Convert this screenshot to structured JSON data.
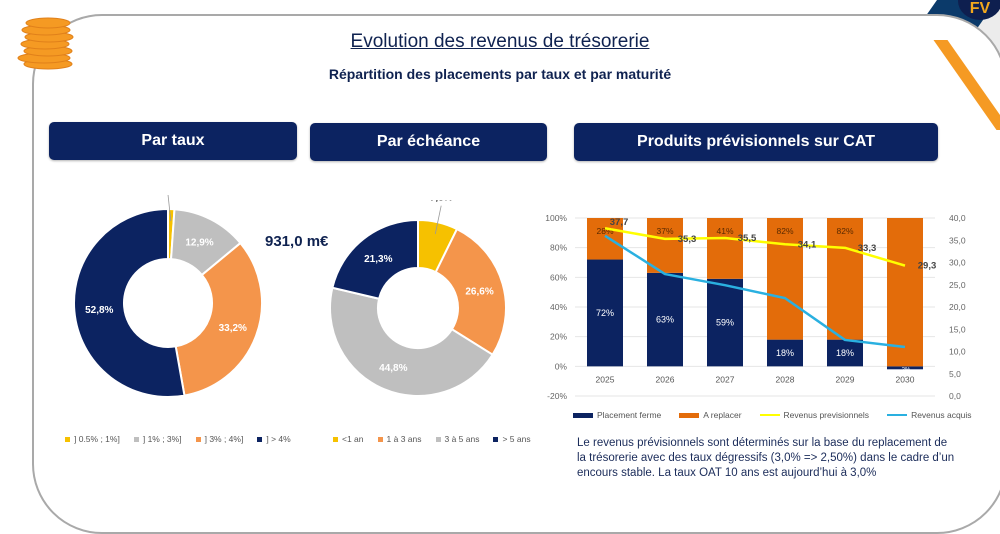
{
  "page": {
    "title": "Evolution des revenus de trésorerie",
    "subtitle": "Répartition des placements par taux et par maturité",
    "total_label": "931,0 m€",
    "logo_text": "FV"
  },
  "panels": {
    "par_taux": {
      "header": "Par taux"
    },
    "par_echeance": {
      "header": "Par échéance"
    },
    "cat": {
      "header": "Produits prévisionnels sur CAT"
    }
  },
  "colors": {
    "navy": "#0c2361",
    "orange_light": "#f4954b",
    "orange_dark": "#e36c0a",
    "grey": "#bfbfbf",
    "gold": "#f6c100",
    "yellow_line": "#ffff00",
    "blue_line": "#2ab0e0"
  },
  "chart_data": [
    {
      "type": "pie",
      "title": "Par taux",
      "donut": true,
      "categories": [
        "] 0.5% ; 1%]",
        "] 1% ; 3%]",
        "] 3% ; 4%]",
        "] > 4%"
      ],
      "values": [
        1.1,
        12.9,
        33.2,
        52.8
      ],
      "labels": [
        "1,1%",
        "12,9%",
        "33,2%",
        "52,8%"
      ],
      "colors": [
        "#f6c100",
        "#bfbfbf",
        "#f4954b",
        "#0c2361"
      ],
      "legend_position": "bottom"
    },
    {
      "type": "pie",
      "title": "Par échéance",
      "donut": true,
      "categories": [
        "<1 an",
        "1 à 3 ans",
        "3 à 5 ans",
        "> 5 ans"
      ],
      "values": [
        7.3,
        26.6,
        44.8,
        21.3
      ],
      "labels": [
        "7,3%",
        "26,6%",
        "44,8%",
        "21,3%"
      ],
      "colors": [
        "#f6c100",
        "#f4954b",
        "#bfbfbf",
        "#0c2361"
      ],
      "legend_position": "bottom"
    },
    {
      "type": "bar",
      "title": "Produits prévisionnels sur CAT",
      "stacked": true,
      "categories": [
        "2025",
        "2026",
        "2027",
        "2028",
        "2029",
        "2030"
      ],
      "y_left": {
        "ticks": [
          "100%",
          "80%",
          "60%",
          "40%",
          "20%",
          "0%",
          "-20%"
        ],
        "range": [
          -20,
          100
        ]
      },
      "y_right": {
        "ticks": [
          "40,0",
          "35,0",
          "30,0",
          "25,0",
          "20,0",
          "15,0",
          "10,0",
          "5,0",
          "0,0"
        ],
        "range": [
          0,
          40
        ]
      },
      "series": [
        {
          "name": "Placement ferme",
          "type": "bar",
          "axis": "left",
          "color": "#0c2361",
          "values": [
            72,
            63,
            59,
            18,
            18,
            -2
          ],
          "labels": [
            "72%",
            "63%",
            "59%",
            "18%",
            "18%",
            "-2%"
          ]
        },
        {
          "name": "A replacer",
          "type": "bar",
          "axis": "left",
          "color": "#e36c0a",
          "values": [
            28,
            37,
            41,
            82,
            82,
            100
          ],
          "labels": [
            "28%",
            "37%",
            "41%",
            "82%",
            "82%",
            ""
          ]
        },
        {
          "name": "Revenus previsionnels",
          "type": "line",
          "axis": "right",
          "color": "#ffff00",
          "values": [
            37.7,
            35.3,
            35.5,
            34.1,
            33.3,
            29.3
          ],
          "labels": [
            "37,7",
            "35,3",
            "35,5",
            "34,1",
            "33,3",
            "29,3"
          ]
        },
        {
          "name": "Revenus acquis",
          "type": "line",
          "axis": "right",
          "color": "#2ab0e0",
          "values": [
            36.0,
            27.4,
            24.9,
            22.0,
            12.6,
            11.0
          ]
        }
      ],
      "grid": true,
      "legend_position": "bottom"
    }
  ],
  "footnote": "Le revenus prévisionnels sont déterminés sur la base du replacement de la trésorerie avec des taux dégressifs (3,0% => 2,50%) dans le cadre d’un encours stable. La taux OAT 10 ans est aujourd’hui à 3,0%"
}
